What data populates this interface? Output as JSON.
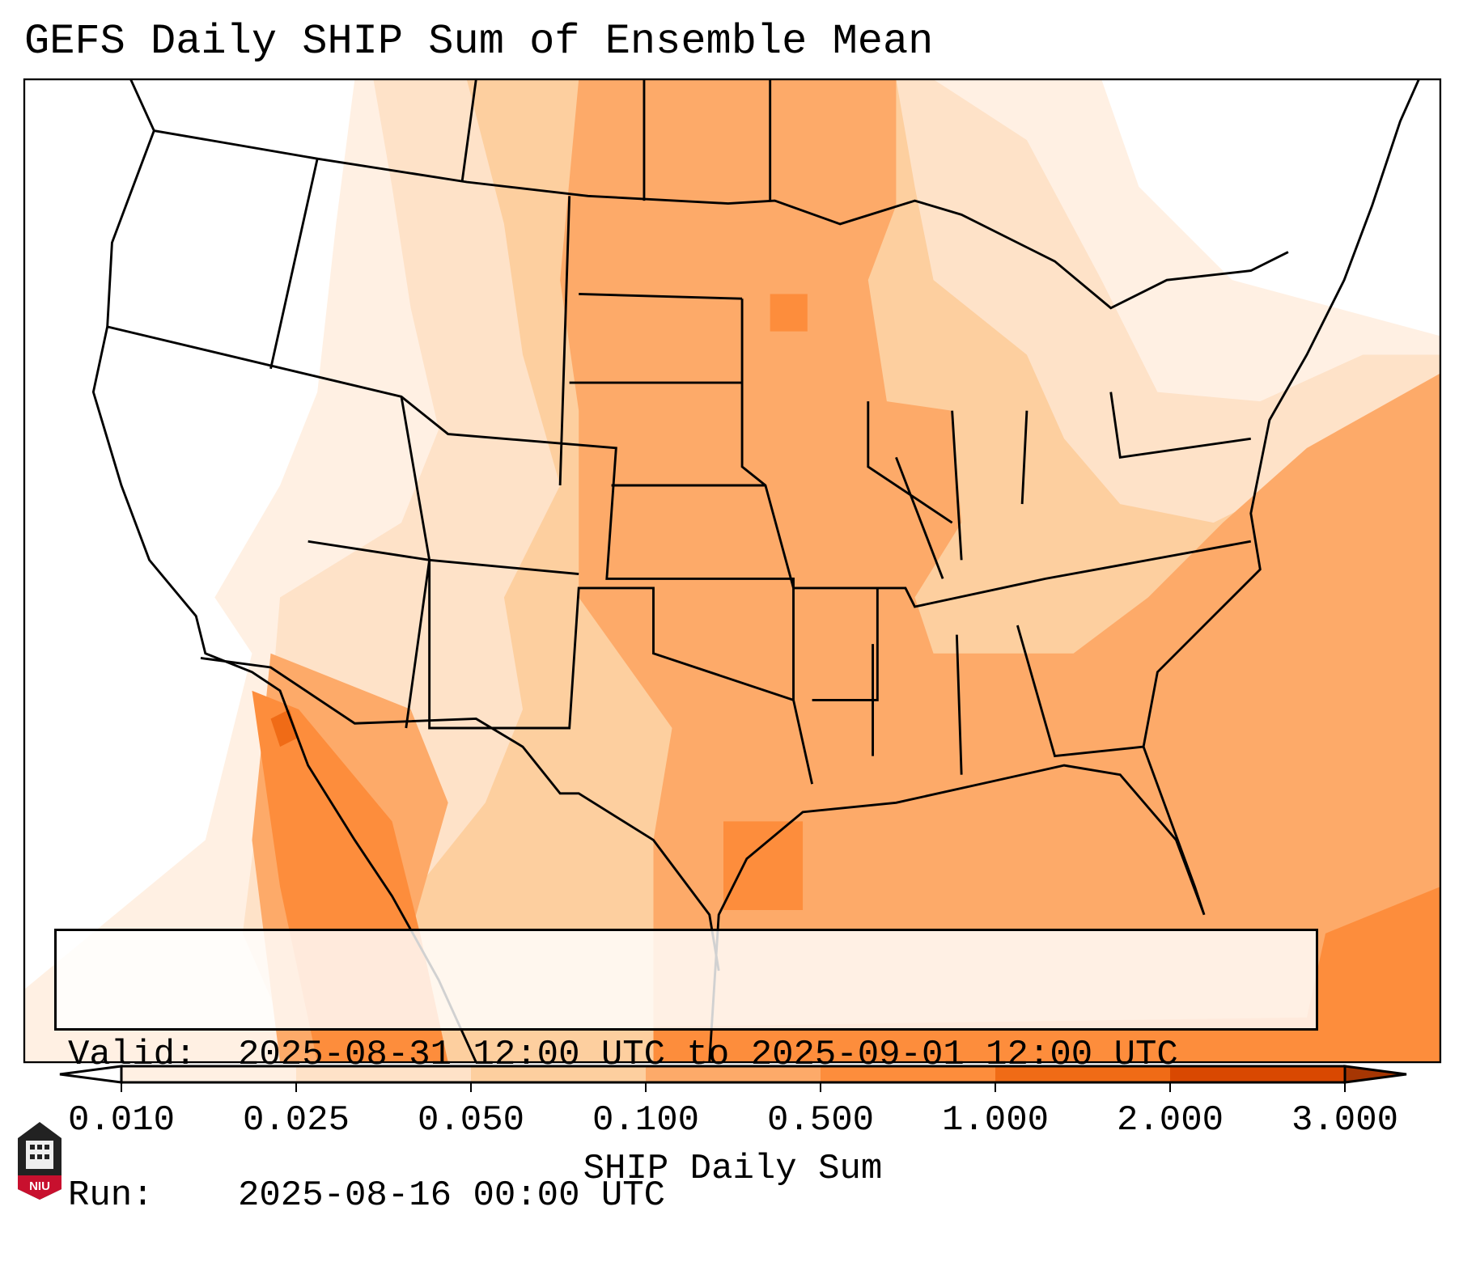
{
  "title": "GEFS Daily SHIP Sum of Ensemble Mean",
  "info_box": {
    "valid_label": "Valid:",
    "valid_value": "2025-08-31 12:00 UTC to 2025-09-01 12:00 UTC",
    "run_label": "Run:",
    "run_value": "2025-08-16 00:00 UTC"
  },
  "colorbar": {
    "label": "SHIP Daily Sum",
    "ticks": [
      "0.010",
      "0.025",
      "0.050",
      "0.100",
      "0.500",
      "1.000",
      "2.000",
      "3.000"
    ],
    "colors": [
      "#ffffff",
      "#fff0e3",
      "#fee2c8",
      "#fdcf9f",
      "#fdaa69",
      "#fd8d3c",
      "#f06b16",
      "#d94801",
      "#a63603"
    ]
  },
  "logo": {
    "text": "NIU"
  }
}
